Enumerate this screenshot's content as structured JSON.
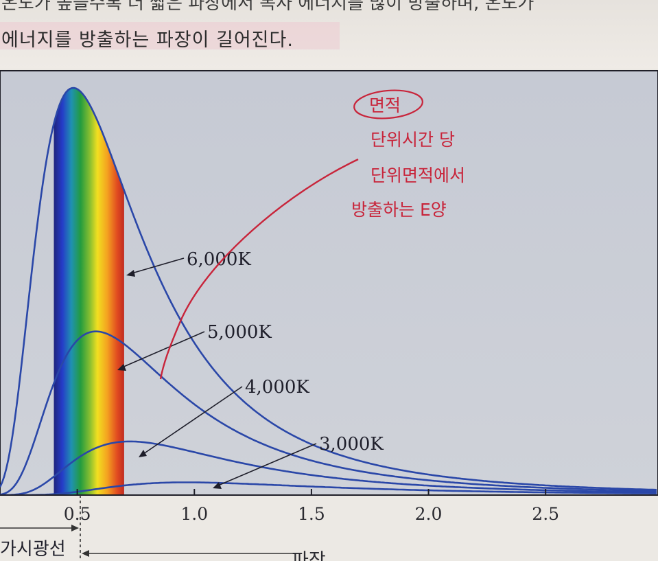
{
  "page": {
    "top_line_partial": "온도가 높을수록 더 짧은 파장에서 복사 에너지를 많이 방출하며, 온도가",
    "main_line": "에너지를 방출하는 파장이 길어진다."
  },
  "chart_data": {
    "type": "line",
    "xlabel": "파장",
    "x_ticks": [
      "0.5",
      "1.0",
      "1.5",
      "2.0",
      "2.5"
    ],
    "x_tick_values": [
      0.5,
      1.0,
      1.5,
      2.0,
      2.5
    ],
    "xlim": [
      0.17,
      2.98
    ],
    "ylim": [
      0,
      1.0
    ],
    "series": [
      {
        "name": "6,000K",
        "temperature_k": 6000,
        "color": "#2a47a8"
      },
      {
        "name": "5,000K",
        "temperature_k": 5000,
        "color": "#2a47a8"
      },
      {
        "name": "4,000K",
        "temperature_k": 4000,
        "color": "#2a47a8"
      },
      {
        "name": "3,000K",
        "temperature_k": 3000,
        "color": "#2a47a8"
      }
    ],
    "visible_band": {
      "label": "가시광선",
      "x_start": 0.4,
      "x_end": 0.7
    },
    "grid": false
  },
  "annotation": {
    "circled": "면적",
    "lines": [
      "단위시간 당",
      "단위면적에서",
      "방출하는 E양"
    ],
    "color": "#c8243a"
  },
  "colors": {
    "plot_bg": "#c9cdd6",
    "curve": "#2a47a8"
  }
}
